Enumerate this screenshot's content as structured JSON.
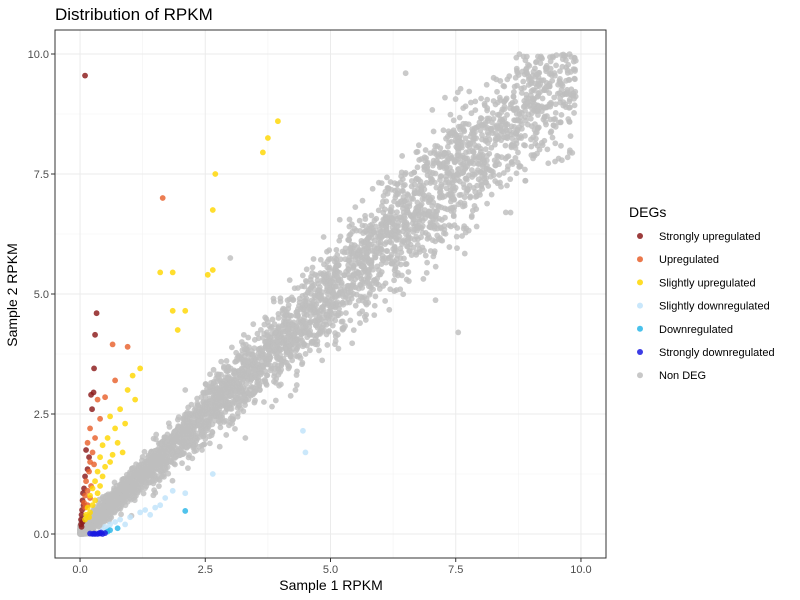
{
  "chart_data": {
    "type": "scatter",
    "title": "Distribution of RPKM",
    "xlabel": "Sample 1 RPKM",
    "ylabel": "Sample 2 RPKM",
    "xlim": [
      -0.5,
      10.5
    ],
    "ylim": [
      -0.5,
      10.5
    ],
    "x_ticks": [
      0.0,
      2.5,
      5.0,
      7.5,
      10.0
    ],
    "x_tick_labels": [
      "0.0",
      "2.5",
      "5.0",
      "7.5",
      "10.0"
    ],
    "y_ticks": [
      0.0,
      2.5,
      5.0,
      7.5,
      10.0
    ],
    "y_tick_labels": [
      "0.0",
      "2.5",
      "5.0",
      "7.5",
      "10.0"
    ],
    "grid": true,
    "legend_position": "right",
    "legend_title": "DEGs",
    "series": [
      {
        "name": "Strongly upregulated",
        "color": "#8B1A1A",
        "points": [
          [
            0.1,
            9.55
          ],
          [
            0.33,
            4.6
          ],
          [
            0.3,
            4.15
          ],
          [
            0.28,
            3.45
          ],
          [
            0.27,
            2.95
          ],
          [
            0.22,
            2.9
          ],
          [
            0.24,
            2.6
          ],
          [
            0.12,
            1.75
          ],
          [
            0.18,
            1.6
          ],
          [
            0.15,
            1.35
          ],
          [
            0.1,
            1.2
          ],
          [
            0.08,
            0.95
          ],
          [
            0.06,
            0.85
          ],
          [
            0.05,
            0.7
          ],
          [
            0.07,
            0.6
          ],
          [
            0.04,
            0.5
          ],
          [
            0.03,
            0.4
          ],
          [
            0.02,
            0.3
          ],
          [
            0.05,
            0.25
          ],
          [
            0.03,
            0.15
          ],
          [
            0.02,
            0.2
          ]
        ]
      },
      {
        "name": "Upregulated",
        "color": "#E8602C",
        "points": [
          [
            1.65,
            7.0
          ],
          [
            0.65,
            3.95
          ],
          [
            0.95,
            3.9
          ],
          [
            0.7,
            3.2
          ],
          [
            0.5,
            2.85
          ],
          [
            0.35,
            2.8
          ],
          [
            0.4,
            2.4
          ],
          [
            0.2,
            2.2
          ],
          [
            0.3,
            2.0
          ],
          [
            0.15,
            1.9
          ],
          [
            0.25,
            1.7
          ],
          [
            0.2,
            1.5
          ],
          [
            0.28,
            1.45
          ],
          [
            0.18,
            1.3
          ],
          [
            0.12,
            1.1
          ],
          [
            0.22,
            1.0
          ],
          [
            0.15,
            0.9
          ],
          [
            0.1,
            0.8
          ],
          [
            0.2,
            0.75
          ],
          [
            0.08,
            0.65
          ],
          [
            0.15,
            0.6
          ],
          [
            0.1,
            0.55
          ]
        ]
      },
      {
        "name": "Slightly upregulated",
        "color": "#FFD700",
        "points": [
          [
            3.95,
            8.6
          ],
          [
            3.75,
            8.25
          ],
          [
            3.65,
            7.95
          ],
          [
            2.7,
            7.5
          ],
          [
            2.65,
            6.75
          ],
          [
            1.6,
            5.45
          ],
          [
            1.85,
            5.45
          ],
          [
            2.55,
            5.4
          ],
          [
            2.65,
            5.5
          ],
          [
            1.85,
            4.65
          ],
          [
            2.1,
            4.65
          ],
          [
            1.95,
            4.25
          ],
          [
            1.2,
            3.45
          ],
          [
            1.05,
            3.3
          ],
          [
            0.95,
            3.0
          ],
          [
            1.1,
            2.8
          ],
          [
            0.8,
            2.6
          ],
          [
            0.6,
            2.45
          ],
          [
            0.7,
            2.2
          ],
          [
            0.55,
            2.0
          ],
          [
            0.45,
            1.85
          ],
          [
            0.65,
            1.65
          ],
          [
            0.4,
            1.6
          ],
          [
            0.5,
            1.4
          ],
          [
            0.35,
            1.3
          ],
          [
            0.45,
            1.2
          ],
          [
            0.3,
            1.1
          ],
          [
            0.4,
            1.0
          ],
          [
            0.25,
            0.95
          ],
          [
            0.35,
            0.85
          ],
          [
            0.2,
            0.8
          ],
          [
            0.3,
            0.7
          ],
          [
            0.25,
            0.6
          ],
          [
            0.15,
            0.55
          ],
          [
            0.2,
            0.45
          ],
          [
            0.12,
            0.4
          ],
          [
            0.18,
            0.35
          ],
          [
            0.1,
            0.3
          ],
          [
            0.75,
            1.9
          ],
          [
            0.9,
            2.3
          ],
          [
            0.85,
            1.7
          ],
          [
            0.6,
            1.5
          ]
        ]
      },
      {
        "name": "Slightly downregulated",
        "color": "#BFE3FA",
        "points": [
          [
            4.45,
            2.15
          ],
          [
            4.5,
            1.7
          ],
          [
            2.65,
            1.25
          ],
          [
            1.5,
            0.55
          ],
          [
            1.4,
            0.4
          ],
          [
            1.3,
            0.5
          ],
          [
            1.85,
            0.9
          ],
          [
            2.1,
            0.85
          ],
          [
            1.6,
            0.6
          ],
          [
            1.0,
            0.35
          ],
          [
            0.8,
            0.3
          ],
          [
            0.6,
            0.2
          ],
          [
            0.7,
            0.25
          ],
          [
            0.9,
            0.2
          ],
          [
            0.5,
            0.15
          ],
          [
            0.55,
            0.1
          ],
          [
            1.2,
            0.45
          ],
          [
            1.7,
            0.75
          ],
          [
            0.45,
            0.08
          ]
        ]
      },
      {
        "name": "Downregulated",
        "color": "#29B6E8",
        "points": [
          [
            2.1,
            0.48
          ],
          [
            0.75,
            0.12
          ],
          [
            0.55,
            0.05
          ],
          [
            0.6,
            0.08
          ]
        ]
      },
      {
        "name": "Strongly downregulated",
        "color": "#1A1AE0",
        "points": [
          [
            0.25,
            0.0
          ],
          [
            0.3,
            0.0
          ],
          [
            0.35,
            0.0
          ],
          [
            0.4,
            0.01
          ],
          [
            0.45,
            0.0
          ],
          [
            0.5,
            0.02
          ],
          [
            0.2,
            0.01
          ],
          [
            0.42,
            0.03
          ],
          [
            0.38,
            0.02
          ],
          [
            0.28,
            0.01
          ]
        ]
      },
      {
        "name": "Non DEG",
        "color": "#BEBEBE",
        "generated": true
      }
    ]
  }
}
